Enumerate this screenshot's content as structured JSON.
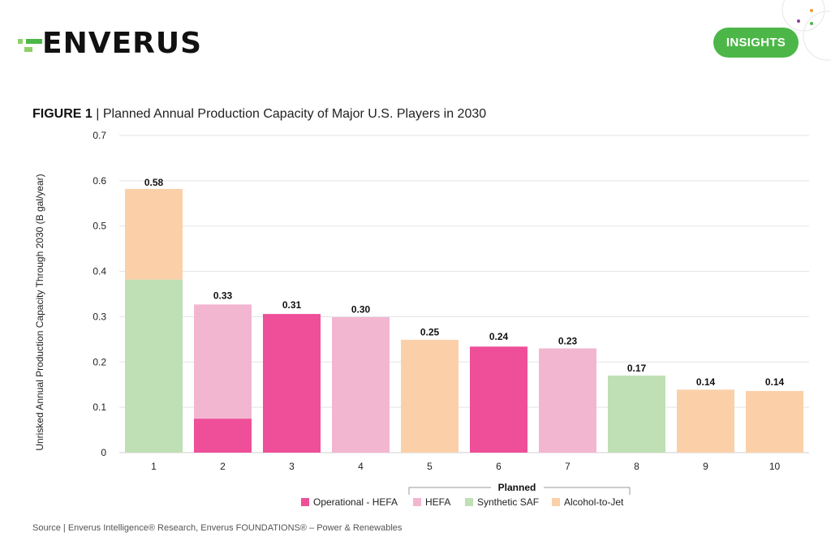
{
  "header": {
    "logo_text": "ENVERUS",
    "badge_label": "INSIGHTS"
  },
  "figure": {
    "label": "FIGURE 1",
    "separator": "|",
    "title": "Planned Annual Production Capacity of Major U.S. Players in 2030"
  },
  "source": "Source | Enverus Intelligence® Research, Enverus FOUNDATIONS® – Power & Renewables",
  "chart_data": {
    "type": "bar",
    "stacked": true,
    "title": "Planned Annual Production Capacity of Major U.S. Players in 2030",
    "xlabel": "",
    "ylabel": "Unrisked Annual Production Capacity Through 2030 (B gal/year)",
    "ylim": [
      0,
      0.7
    ],
    "yticks": [
      0,
      0.1,
      0.2,
      0.3,
      0.4,
      0.5,
      0.6,
      0.7
    ],
    "ytick_labels": [
      "0",
      "0.1",
      "0.2",
      "0.3",
      "0.4",
      "0.5",
      "0.6",
      "0.7"
    ],
    "grid": true,
    "categories": [
      "1",
      "2",
      "3",
      "4",
      "5",
      "6",
      "7",
      "8",
      "9",
      "10"
    ],
    "totals": [
      0.58,
      0.33,
      0.31,
      0.3,
      0.25,
      0.24,
      0.23,
      0.17,
      0.14,
      0.14
    ],
    "total_labels": [
      "0.58",
      "0.33",
      "0.31",
      "0.30",
      "0.25",
      "0.24",
      "0.23",
      "0.17",
      "0.14",
      "0.14"
    ],
    "series": [
      {
        "name": "Operational - HEFA",
        "color": "#ee4f98",
        "values": [
          0,
          0.075,
          0.306,
          0,
          0,
          0.234,
          0,
          0,
          0,
          0
        ]
      },
      {
        "name": "HEFA",
        "color": "#f3b6d1",
        "values": [
          0,
          0.252,
          0,
          0.299,
          0,
          0,
          0.23,
          0,
          0,
          0
        ]
      },
      {
        "name": "Synthetic SAF",
        "color": "#bfdfb4",
        "values": [
          0.382,
          0,
          0,
          0,
          0,
          0,
          0,
          0.17,
          0,
          0
        ]
      },
      {
        "name": "Alcohol-to-Jet",
        "color": "#fbd0a9",
        "values": [
          0.2,
          0,
          0,
          0,
          0.249,
          0,
          0,
          0,
          0.139,
          0.136
        ]
      }
    ],
    "legend": {
      "placement": "bottom-center",
      "group_label": "Planned",
      "group_members": [
        "HEFA",
        "Synthetic SAF",
        "Alcohol-to-Jet"
      ]
    }
  }
}
